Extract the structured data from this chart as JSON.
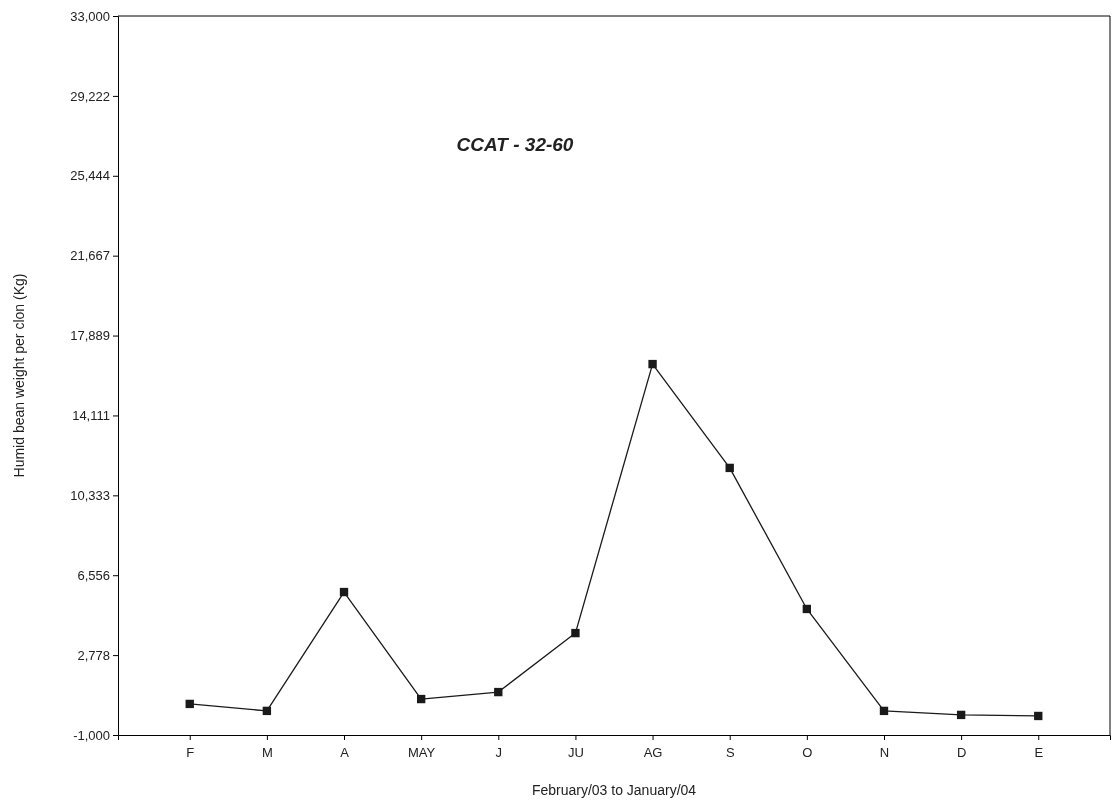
{
  "chart_data": {
    "type": "line",
    "title": "CCAT - 32-60",
    "xlabel": "February/03 to January/04",
    "ylabel": "Humid bean weight per clon (Kg)",
    "categories": [
      "F",
      "M",
      "A",
      "MAY",
      "J",
      "JU",
      "AG",
      "S",
      "O",
      "N",
      "D",
      "E"
    ],
    "series": [
      {
        "color": "#1a1a1a",
        "values": [
          470,
          140,
          5760,
          700,
          1030,
          3820,
          16540,
          11630,
          4960,
          140,
          -50,
          -100
        ]
      }
    ],
    "ylim": [
      -1000,
      33000
    ],
    "yticks": [
      {
        "value": -1000,
        "label": "-1,000"
      },
      {
        "value": 2778,
        "label": "2,778"
      },
      {
        "value": 6556,
        "label": "6,556"
      },
      {
        "value": 10333,
        "label": "10,333"
      },
      {
        "value": 14111,
        "label": "14,111"
      },
      {
        "value": 17889,
        "label": "17,889"
      },
      {
        "value": 21667,
        "label": "21,667"
      },
      {
        "value": 25444,
        "label": "25,444"
      },
      {
        "value": 29222,
        "label": "29,222"
      },
      {
        "value": 33000,
        "label": "33,000"
      }
    ],
    "grid": false,
    "marker": "square",
    "line_style": "solid"
  }
}
